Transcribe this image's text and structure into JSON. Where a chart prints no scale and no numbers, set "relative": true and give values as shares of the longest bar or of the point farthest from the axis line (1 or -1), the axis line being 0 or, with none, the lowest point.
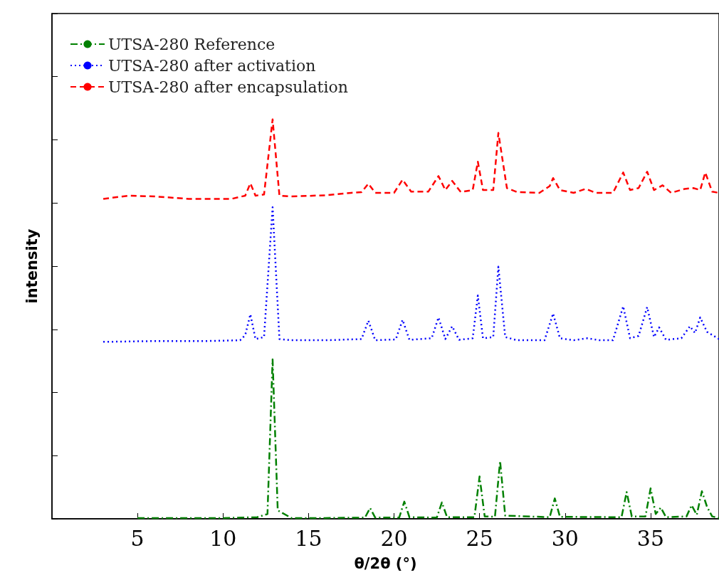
{
  "chart_data": {
    "type": "line",
    "relative": true,
    "xlabel": "θ/2θ (°)",
    "ylabel": "intensity",
    "xlim": [
      0,
      39
    ],
    "xticks": [
      5,
      10,
      15,
      20,
      25,
      30,
      35
    ],
    "grid": false,
    "legend": "top left",
    "marker": "none",
    "series": [
      {
        "name": "UTSA-280 Reference",
        "color": "#008000",
        "line_style": "dashdot",
        "x": [
          5,
          8,
          10,
          12,
          12.6,
          12.9,
          13.2,
          14,
          16,
          18.3,
          18.6,
          18.9,
          20.3,
          20.6,
          20.9,
          22.5,
          22.8,
          23.1,
          24.7,
          25.0,
          25.3,
          25.9,
          26.2,
          26.5,
          29.1,
          29.4,
          29.7,
          33.3,
          33.6,
          33.9,
          34.7,
          35.0,
          35.3,
          35.6,
          35.9,
          37.1,
          37.4,
          37.7,
          38.0,
          38.3,
          38.6,
          39
        ],
        "values": [
          0.002,
          0.002,
          0.002,
          0.004,
          0.012,
          0.399,
          0.021,
          0.002,
          0.002,
          0.003,
          0.027,
          0.003,
          0.003,
          0.043,
          0.004,
          0.003,
          0.041,
          0.004,
          0.004,
          0.106,
          0.006,
          0.005,
          0.145,
          0.008,
          0.004,
          0.051,
          0.005,
          0.004,
          0.067,
          0.006,
          0.006,
          0.076,
          0.012,
          0.028,
          0.004,
          0.006,
          0.034,
          0.01,
          0.069,
          0.03,
          0.006,
          0.002
        ]
      },
      {
        "name": "UTSA-280 after activation",
        "color": "#0000ff",
        "line_style": "dotted",
        "x": [
          3,
          6,
          9,
          11,
          11.3,
          11.6,
          11.9,
          12.4,
          12.9,
          13.3,
          14,
          16,
          18.1,
          18.5,
          18.9,
          20.1,
          20.5,
          20.9,
          22.2,
          22.6,
          23.0,
          23.4,
          23.8,
          24.6,
          24.9,
          25.2,
          25.8,
          26.1,
          26.5,
          27.2,
          28.8,
          29.3,
          29.7,
          30.5,
          31.3,
          32,
          32.8,
          33.4,
          33.8,
          34.3,
          34.8,
          35.2,
          35.5,
          35.9,
          36.8,
          37.3,
          37.6,
          37.9,
          38.3,
          39
        ],
        "values": [
          0.443,
          0.445,
          0.445,
          0.447,
          0.46,
          0.512,
          0.45,
          0.455,
          0.78,
          0.45,
          0.447,
          0.447,
          0.45,
          0.496,
          0.447,
          0.449,
          0.498,
          0.448,
          0.452,
          0.504,
          0.45,
          0.482,
          0.448,
          0.452,
          0.559,
          0.452,
          0.455,
          0.631,
          0.455,
          0.447,
          0.447,
          0.514,
          0.452,
          0.447,
          0.452,
          0.447,
          0.447,
          0.532,
          0.452,
          0.458,
          0.53,
          0.455,
          0.479,
          0.448,
          0.452,
          0.482,
          0.465,
          0.504,
          0.468,
          0.45
        ]
      },
      {
        "name": "UTSA-280 after encapsulation",
        "color": "#ff0000",
        "line_style": "dashed",
        "x": [
          3,
          4.5,
          6,
          8,
          10.5,
          11.3,
          11.6,
          11.9,
          12.4,
          12.9,
          13.3,
          14,
          16,
          17.5,
          18.1,
          18.5,
          18.9,
          20,
          20.5,
          21,
          22,
          22.6,
          23.0,
          23.4,
          23.9,
          24.6,
          24.9,
          25.2,
          25.8,
          26.1,
          26.6,
          27.2,
          28.5,
          29.1,
          29.3,
          29.7,
          30.5,
          31.2,
          31.8,
          32.8,
          33.4,
          33.8,
          34.3,
          34.8,
          35.2,
          35.7,
          36.2,
          37,
          37.5,
          37.9,
          38.2,
          38.6,
          39
        ],
        "values": [
          0.801,
          0.809,
          0.807,
          0.801,
          0.801,
          0.809,
          0.84,
          0.809,
          0.812,
          1.0,
          0.809,
          0.807,
          0.81,
          0.816,
          0.818,
          0.839,
          0.816,
          0.816,
          0.849,
          0.819,
          0.819,
          0.858,
          0.823,
          0.846,
          0.818,
          0.823,
          0.894,
          0.823,
          0.823,
          0.966,
          0.828,
          0.818,
          0.816,
          0.833,
          0.853,
          0.823,
          0.816,
          0.826,
          0.816,
          0.816,
          0.867,
          0.823,
          0.828,
          0.869,
          0.823,
          0.835,
          0.816,
          0.826,
          0.828,
          0.823,
          0.867,
          0.819,
          0.816
        ]
      }
    ]
  }
}
